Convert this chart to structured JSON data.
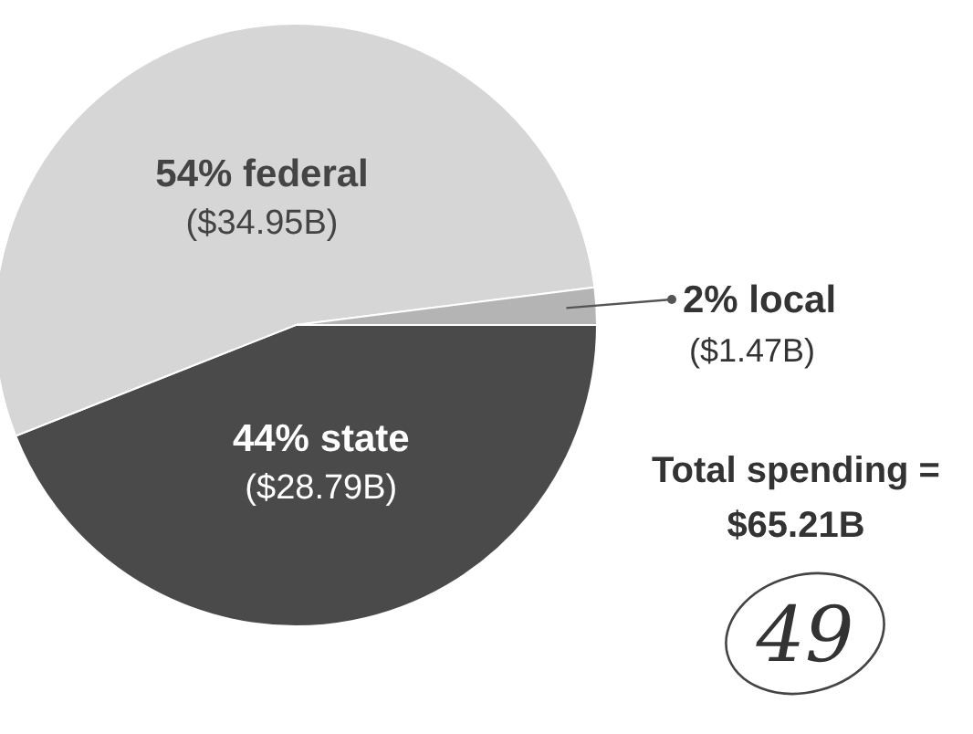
{
  "chart_data": {
    "type": "pie",
    "categories": [
      "state",
      "federal",
      "local"
    ],
    "values": [
      44,
      54,
      2
    ],
    "value_labels": [
      "44%",
      "54%",
      "2%"
    ],
    "colors": [
      "#4a4a4a",
      "#d6d6d6",
      "#b4b4b4"
    ],
    "annotations": [
      {
        "text": "($28.79B)",
        "x": "state"
      },
      {
        "text": "($34.95B)",
        "x": "federal"
      },
      {
        "text": "($1.47B)",
        "x": "local"
      },
      "Total spending = $65.21B",
      "49"
    ]
  }
}
